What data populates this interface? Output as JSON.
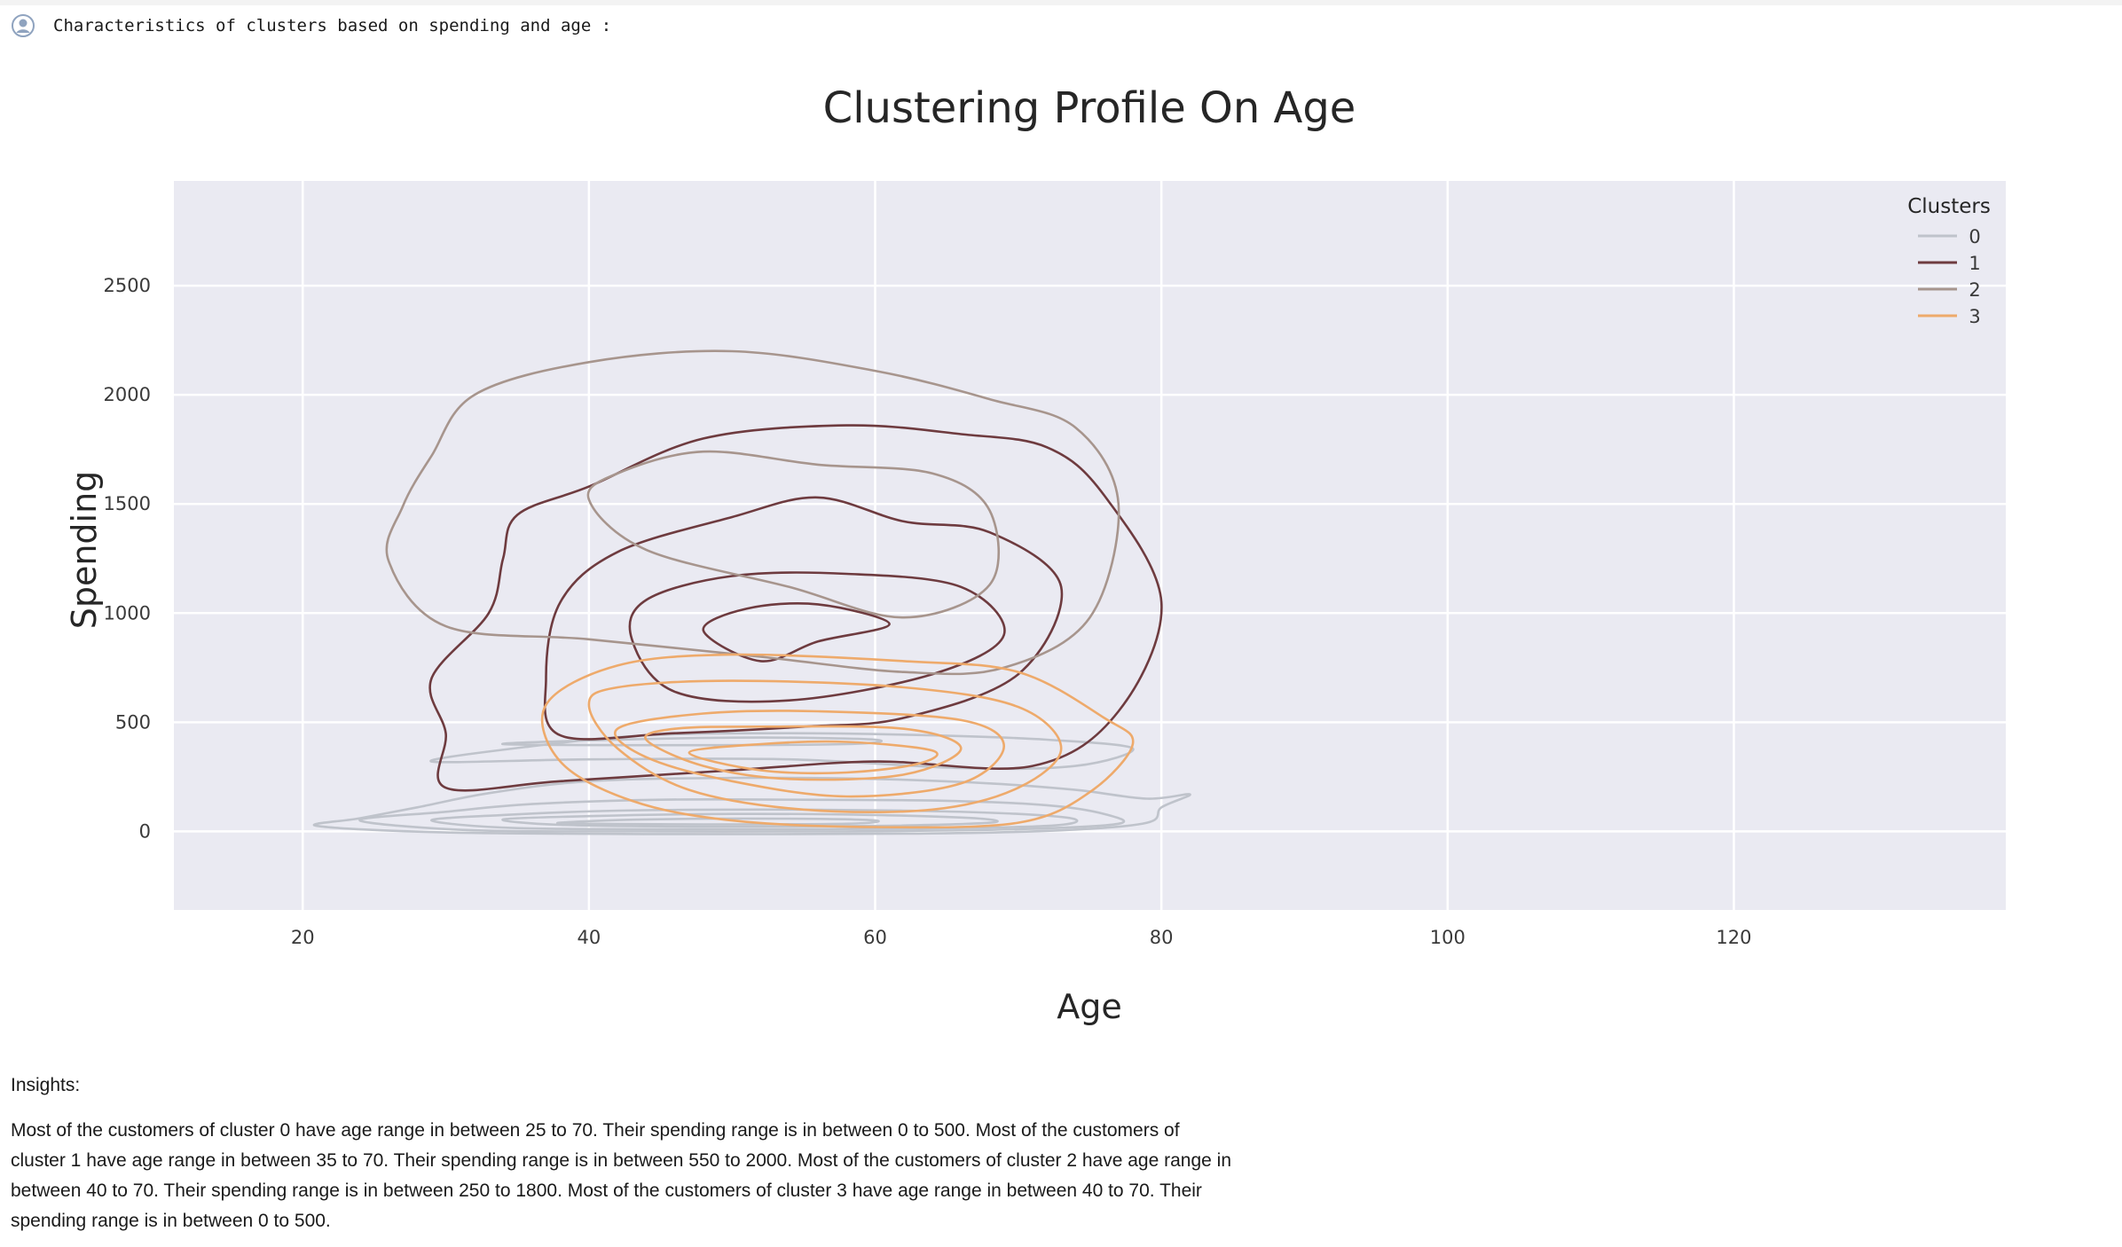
{
  "cell": {
    "prompt": "Characteristics of clusters based on spending and age :",
    "icon": "user-circle-icon"
  },
  "chart_data": {
    "type": "kde-contour",
    "title": "Clustering Profile On Age",
    "xlabel": "Age",
    "ylabel": "Spending",
    "xlim": [
      11,
      139
    ],
    "ylim": [
      -360,
      2980
    ],
    "xticks": [
      20,
      40,
      60,
      80,
      100,
      120
    ],
    "yticks": [
      0,
      500,
      1000,
      1500,
      2000,
      2500
    ],
    "grid": true,
    "legend": {
      "title": "Clusters",
      "placement": "top-right"
    },
    "series": [
      {
        "name": "0",
        "color": "#bfc3cb",
        "contours": [
          [
            [
              21,
              25
            ],
            [
              24,
              60
            ],
            [
              28,
              110
            ],
            [
              33,
              175
            ],
            [
              40,
              230
            ],
            [
              50,
              245
            ],
            [
              60,
              240
            ],
            [
              68,
              220
            ],
            [
              74,
              190
            ],
            [
              79,
              150
            ],
            [
              82,
              170
            ],
            [
              80,
              110
            ],
            [
              79,
              40
            ],
            [
              73,
              5
            ],
            [
              63,
              -10
            ],
            [
              45,
              -12
            ],
            [
              30,
              -5
            ],
            [
              21,
              25
            ]
          ],
          [
            [
              24,
              50
            ],
            [
              30,
              90
            ],
            [
              36,
              125
            ],
            [
              45,
              145
            ],
            [
              55,
              145
            ],
            [
              65,
              140
            ],
            [
              72,
              120
            ],
            [
              76,
              80
            ],
            [
              77,
              35
            ],
            [
              70,
              10
            ],
            [
              58,
              0
            ],
            [
              45,
              0
            ],
            [
              32,
              5
            ],
            [
              24,
              50
            ]
          ],
          [
            [
              29,
              50
            ],
            [
              34,
              75
            ],
            [
              42,
              95
            ],
            [
              52,
              100
            ],
            [
              62,
              95
            ],
            [
              70,
              80
            ],
            [
              74,
              55
            ],
            [
              72,
              25
            ],
            [
              62,
              12
            ],
            [
              48,
              10
            ],
            [
              35,
              15
            ],
            [
              29,
              50
            ]
          ],
          [
            [
              34,
              55
            ],
            [
              40,
              70
            ],
            [
              50,
              80
            ],
            [
              60,
              75
            ],
            [
              67,
              60
            ],
            [
              68,
              40
            ],
            [
              60,
              25
            ],
            [
              48,
              22
            ],
            [
              38,
              30
            ],
            [
              34,
              55
            ]
          ],
          [
            [
              38,
              40
            ],
            [
              44,
              55
            ],
            [
              54,
              58
            ],
            [
              60,
              50
            ],
            [
              58,
              35
            ],
            [
              48,
              32
            ],
            [
              40,
              35
            ],
            [
              38,
              40
            ]
          ],
          [
            [
              29,
              320
            ],
            [
              36,
              390
            ],
            [
              44,
              440
            ],
            [
              54,
              450
            ],
            [
              64,
              440
            ],
            [
              72,
              420
            ],
            [
              78,
              380
            ],
            [
              74,
              300
            ],
            [
              66,
              290
            ],
            [
              54,
              330
            ],
            [
              40,
              330
            ],
            [
              29,
              320
            ]
          ],
          [
            [
              34,
              400
            ],
            [
              42,
              420
            ],
            [
              52,
              430
            ],
            [
              60,
              420
            ],
            [
              58,
              400
            ],
            [
              46,
              395
            ],
            [
              34,
              400
            ]
          ]
        ]
      },
      {
        "name": "1",
        "color": "#6e3b3f",
        "contours": [
          [
            [
              30,
              200
            ],
            [
              30,
              450
            ],
            [
              29,
              700
            ],
            [
              33,
              1000
            ],
            [
              34,
              1250
            ],
            [
              35,
              1450
            ],
            [
              40,
              1580
            ],
            [
              48,
              1800
            ],
            [
              58,
              1860
            ],
            [
              66,
              1820
            ],
            [
              72,
              1760
            ],
            [
              76,
              1540
            ],
            [
              80,
              1050
            ],
            [
              77,
              550
            ],
            [
              71,
              300
            ],
            [
              60,
              320
            ],
            [
              50,
              280
            ],
            [
              38,
              230
            ],
            [
              30,
              200
            ]
          ],
          [
            [
              38,
              440
            ],
            [
              37,
              700
            ],
            [
              38,
              1050
            ],
            [
              42,
              1280
            ],
            [
              50,
              1440
            ],
            [
              56,
              1530
            ],
            [
              62,
              1420
            ],
            [
              68,
              1370
            ],
            [
              73,
              1120
            ],
            [
              70,
              720
            ],
            [
              62,
              520
            ],
            [
              55,
              480
            ],
            [
              46,
              450
            ],
            [
              38,
              440
            ]
          ],
          [
            [
              43,
              880
            ],
            [
              44,
              1060
            ],
            [
              50,
              1170
            ],
            [
              58,
              1180
            ],
            [
              66,
              1120
            ],
            [
              69,
              900
            ],
            [
              64,
              720
            ],
            [
              54,
              600
            ],
            [
              46,
              640
            ],
            [
              43,
              880
            ]
          ],
          [
            [
              48,
              920
            ],
            [
              51,
              1020
            ],
            [
              56,
              1040
            ],
            [
              61,
              950
            ],
            [
              56,
              870
            ],
            [
              52,
              780
            ],
            [
              48,
              920
            ]
          ]
        ]
      },
      {
        "name": "2",
        "color": "#a7958d",
        "contours": [
          [
            [
              26,
              1240
            ],
            [
              27,
              1490
            ],
            [
              29,
              1720
            ],
            [
              32,
              2000
            ],
            [
              40,
              2150
            ],
            [
              50,
              2200
            ],
            [
              60,
              2110
            ],
            [
              68,
              1980
            ],
            [
              74,
              1850
            ],
            [
              77,
              1500
            ],
            [
              75,
              980
            ],
            [
              69,
              750
            ],
            [
              62,
              730
            ],
            [
              52,
              800
            ],
            [
              40,
              880
            ],
            [
              30,
              940
            ],
            [
              26,
              1240
            ]
          ],
          [
            [
              40,
              1520
            ],
            [
              42,
              1640
            ],
            [
              48,
              1740
            ],
            [
              56,
              1680
            ],
            [
              64,
              1640
            ],
            [
              68,
              1470
            ],
            [
              68,
              1130
            ],
            [
              62,
              980
            ],
            [
              54,
              1120
            ],
            [
              44,
              1290
            ],
            [
              40,
              1520
            ]
          ]
        ]
      },
      {
        "name": "3",
        "color": "#eeaa6b",
        "contours": [
          [
            [
              37,
              580
            ],
            [
              38,
              320
            ],
            [
              43,
              140
            ],
            [
              50,
              50
            ],
            [
              60,
              20
            ],
            [
              70,
              40
            ],
            [
              75,
              180
            ],
            [
              78,
              400
            ],
            [
              76,
              520
            ],
            [
              70,
              730
            ],
            [
              62,
              780
            ],
            [
              50,
              810
            ],
            [
              42,
              760
            ],
            [
              37,
              580
            ]
          ],
          [
            [
              40,
              580
            ],
            [
              42,
              380
            ],
            [
              47,
              190
            ],
            [
              55,
              100
            ],
            [
              64,
              100
            ],
            [
              70,
              200
            ],
            [
              73,
              380
            ],
            [
              70,
              570
            ],
            [
              62,
              660
            ],
            [
              50,
              690
            ],
            [
              42,
              660
            ],
            [
              40,
              580
            ]
          ],
          [
            [
              42,
              470
            ],
            [
              44,
              340
            ],
            [
              50,
              230
            ],
            [
              58,
              160
            ],
            [
              66,
              220
            ],
            [
              69,
              390
            ],
            [
              66,
              510
            ],
            [
              56,
              550
            ],
            [
              48,
              540
            ],
            [
              42,
              470
            ]
          ],
          [
            [
              44,
              420
            ],
            [
              48,
              300
            ],
            [
              54,
              240
            ],
            [
              62,
              260
            ],
            [
              66,
              380
            ],
            [
              62,
              470
            ],
            [
              52,
              480
            ],
            [
              46,
              470
            ],
            [
              44,
              420
            ]
          ],
          [
            [
              47,
              360
            ],
            [
              52,
              280
            ],
            [
              58,
              270
            ],
            [
              63,
              310
            ],
            [
              64,
              370
            ],
            [
              58,
              410
            ],
            [
              52,
              400
            ],
            [
              47,
              360
            ]
          ]
        ]
      }
    ]
  },
  "insights": {
    "title": "Insights:",
    "text": "Most of the customers of cluster 0 have age range in between 25 to 70. Their spending range is in between 0 to 500. Most of the customers of cluster 1 have age range in between 35 to 70. Their spending range is in between 550 to 2000. Most of the customers of cluster 2 have age range in between 40 to 70. Their spending range is in between 250 to 1800. Most of the customers of cluster 3 have age range in between 40 to 70. Their spending range is in between 0 to 500."
  }
}
